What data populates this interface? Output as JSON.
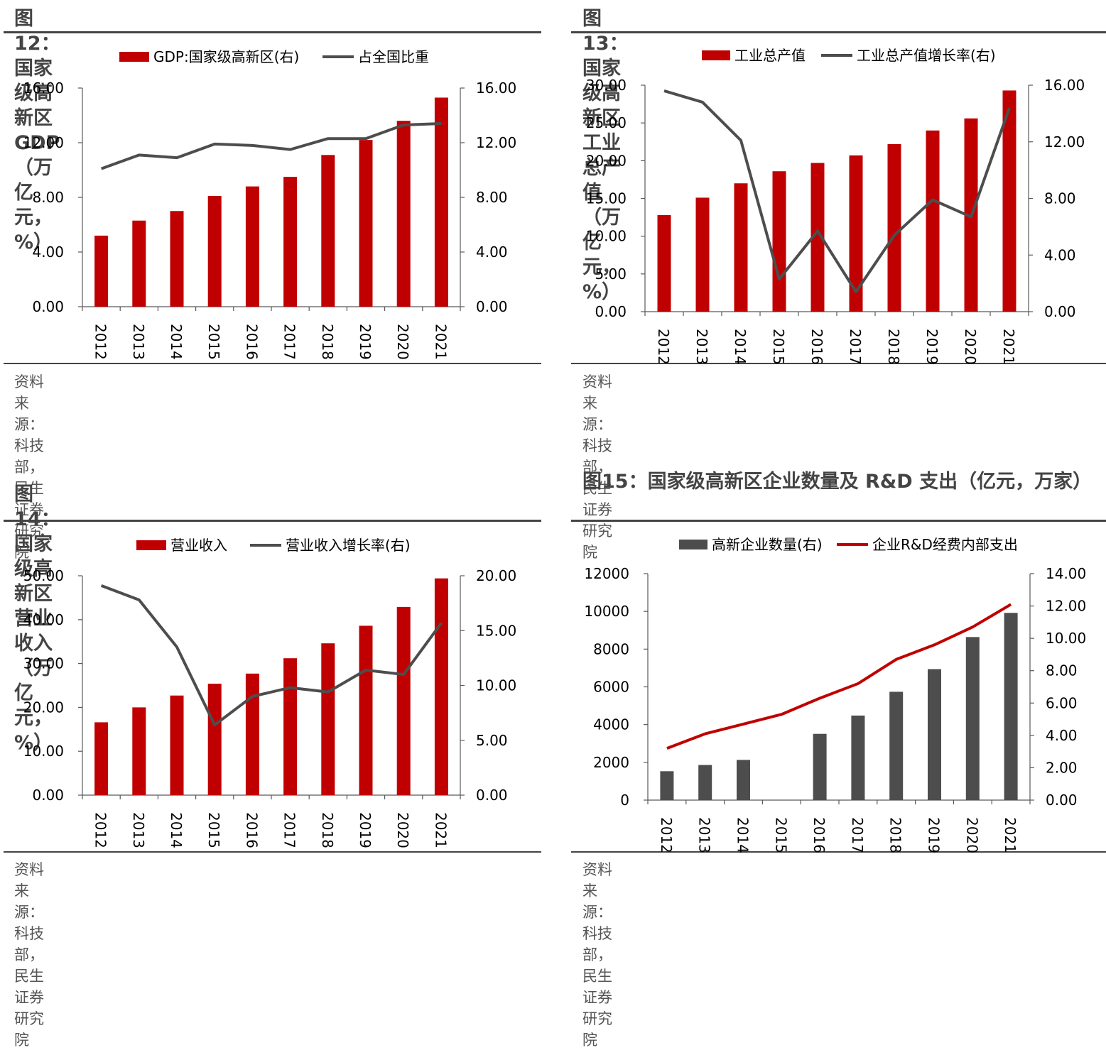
{
  "colors": {
    "red": "#c00000",
    "dark": "#4d4d4d",
    "axis": "#595959",
    "text": "#000000"
  },
  "panels": [
    {
      "title": "图12：国家级高新区 GDP（万亿元，%）",
      "source": "资料来源：科技部，民生证券研究院"
    },
    {
      "title": "图13：国家级高新区工业总产值（万亿元，%）",
      "source": "资料来源：科技部，民生证券研究院"
    },
    {
      "title": "图14：国家级高新区营业收入（万亿元，%）",
      "source": "资料来源：科技部，民生证券研究院"
    },
    {
      "title": "图15：国家级高新区企业数量及 R&D 支出（亿元，万家）",
      "source": "资料来源：科技部，民生证券研究院"
    }
  ],
  "chart_data": [
    {
      "type": "bar+line",
      "categories": [
        "2012",
        "2013",
        "2014",
        "2015",
        "2016",
        "2017",
        "2018",
        "2019",
        "2020",
        "2021"
      ],
      "series": [
        {
          "name": "GDP:国家级高新区(右)",
          "kind": "bar",
          "axis": "left",
          "color": "#c00000",
          "values": [
            5.2,
            6.3,
            7.0,
            8.1,
            8.8,
            9.5,
            11.1,
            12.2,
            13.6,
            15.3
          ]
        },
        {
          "name": "占全国比重",
          "kind": "line",
          "axis": "right",
          "color": "#4d4d4d",
          "values": [
            10.1,
            11.1,
            10.9,
            11.9,
            11.8,
            11.5,
            12.3,
            12.3,
            13.3,
            13.4
          ]
        }
      ],
      "left_axis": {
        "min": 0,
        "max": 16,
        "ticks": [
          "0.00",
          "4.00",
          "8.00",
          "12.00",
          "16.00"
        ]
      },
      "right_axis": {
        "min": 0,
        "max": 16,
        "ticks": [
          "0.00",
          "4.00",
          "8.00",
          "12.00",
          "16.00"
        ]
      },
      "legend": "top-center"
    },
    {
      "type": "bar+line",
      "categories": [
        "2012",
        "2013",
        "2014",
        "2015",
        "2016",
        "2017",
        "2018",
        "2019",
        "2020",
        "2021"
      ],
      "series": [
        {
          "name": "工业总产值",
          "kind": "bar",
          "axis": "left",
          "color": "#c00000",
          "values": [
            12.8,
            15.1,
            17.0,
            18.6,
            19.7,
            20.7,
            22.2,
            24.0,
            25.6,
            29.3
          ]
        },
        {
          "name": "工业总产值增长率(右)",
          "kind": "line",
          "axis": "right",
          "color": "#4d4d4d",
          "values": [
            15.6,
            14.8,
            12.1,
            2.3,
            5.7,
            1.4,
            5.4,
            7.9,
            6.7,
            14.4
          ]
        }
      ],
      "left_axis": {
        "min": 0,
        "max": 30,
        "ticks": [
          "0.00",
          "5.00",
          "10.00",
          "15.00",
          "20.00",
          "25.00",
          "30.00"
        ]
      },
      "right_axis": {
        "min": 0,
        "max": 16,
        "ticks": [
          "0.00",
          "4.00",
          "8.00",
          "12.00",
          "16.00"
        ]
      },
      "legend": "top-center"
    },
    {
      "type": "bar+line",
      "categories": [
        "2012",
        "2013",
        "2014",
        "2015",
        "2016",
        "2017",
        "2018",
        "2019",
        "2020",
        "2021"
      ],
      "series": [
        {
          "name": "营业收入",
          "kind": "bar",
          "axis": "left",
          "color": "#c00000",
          "values": [
            16.6,
            20.0,
            22.7,
            25.4,
            27.7,
            31.2,
            34.6,
            38.6,
            42.9,
            49.4
          ]
        },
        {
          "name": "营业收入增长率(右)",
          "kind": "line",
          "axis": "right",
          "color": "#4d4d4d",
          "values": [
            19.1,
            17.8,
            13.5,
            6.4,
            9.0,
            9.8,
            9.4,
            11.4,
            11.0,
            15.7
          ]
        }
      ],
      "left_axis": {
        "min": 0,
        "max": 50,
        "ticks": [
          "0.00",
          "10.00",
          "20.00",
          "30.00",
          "40.00",
          "50.00"
        ]
      },
      "right_axis": {
        "min": 0,
        "max": 20,
        "ticks": [
          "0.00",
          "5.00",
          "10.00",
          "15.00",
          "20.00"
        ]
      },
      "legend": "top-center"
    },
    {
      "type": "bar+line",
      "categories": [
        "2012",
        "2013",
        "2014",
        "2015",
        "2016",
        "2017",
        "2018",
        "2019",
        "2020",
        "2021"
      ],
      "series": [
        {
          "name": "高新企业数量(右)",
          "kind": "bar",
          "axis": "left",
          "color": "#4d4d4d",
          "values": [
            1530,
            1860,
            2130,
            null,
            3510,
            4480,
            5740,
            6940,
            8640,
            9920
          ]
        },
        {
          "name": "企业R&D经费内部支出",
          "kind": "line",
          "axis": "right",
          "color": "#c00000",
          "values": [
            3.2,
            4.1,
            4.7,
            5.3,
            6.3,
            7.2,
            8.7,
            9.6,
            10.7,
            12.1
          ]
        }
      ],
      "left_axis": {
        "min": 0,
        "max": 12000,
        "ticks": [
          "0",
          "2000",
          "4000",
          "6000",
          "8000",
          "10000",
          "12000"
        ]
      },
      "right_axis": {
        "min": 0,
        "max": 14,
        "ticks": [
          "0.00",
          "2.00",
          "4.00",
          "6.00",
          "8.00",
          "10.00",
          "12.00",
          "14.00"
        ]
      },
      "legend": "top-center"
    }
  ]
}
